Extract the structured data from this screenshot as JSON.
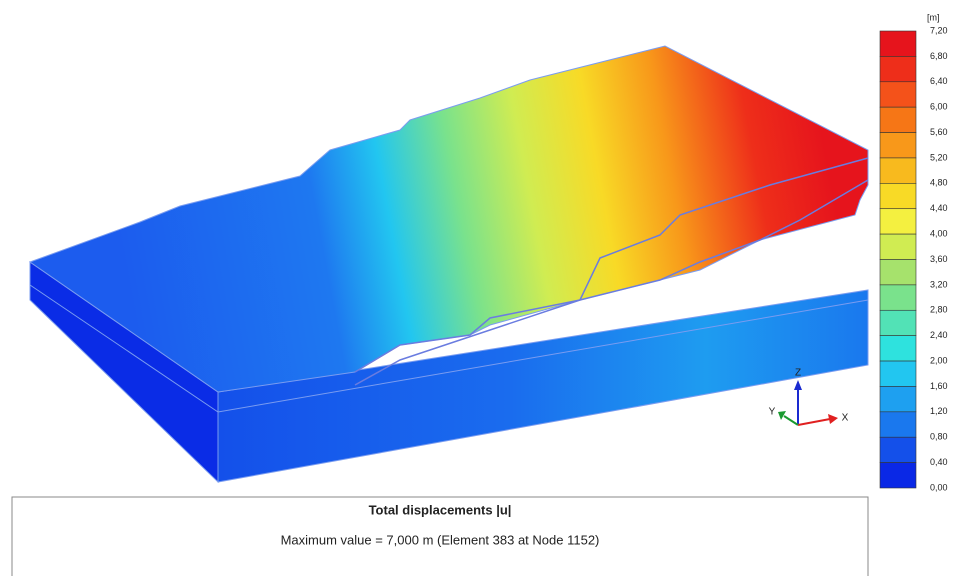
{
  "legend": {
    "unit": "[m]",
    "labels": [
      "7,20",
      "6,80",
      "6,40",
      "6,00",
      "5,60",
      "5,20",
      "4,80",
      "4,40",
      "4,00",
      "3,60",
      "3,20",
      "2,80",
      "2,40",
      "2,00",
      "1,60",
      "1,20",
      "0,80",
      "0,40",
      "0,00"
    ],
    "colors": [
      "#e6141c",
      "#ee2e1a",
      "#f4521a",
      "#f67616",
      "#f8981a",
      "#f8ba1e",
      "#f8da26",
      "#f4f040",
      "#d0ec52",
      "#a6e26c",
      "#7ae28c",
      "#52e2b6",
      "#2ee2de",
      "#22c6f0",
      "#1ea0f0",
      "#1a78ee",
      "#1450ea",
      "#0a28e6"
    ]
  },
  "result_box": {
    "title": "Total displacements |u|",
    "subtitle": "Maximum value = 7,000 m (Element 383 at Node 1152)"
  },
  "axes": {
    "z": "Z",
    "y": "Y",
    "x": "X"
  }
}
